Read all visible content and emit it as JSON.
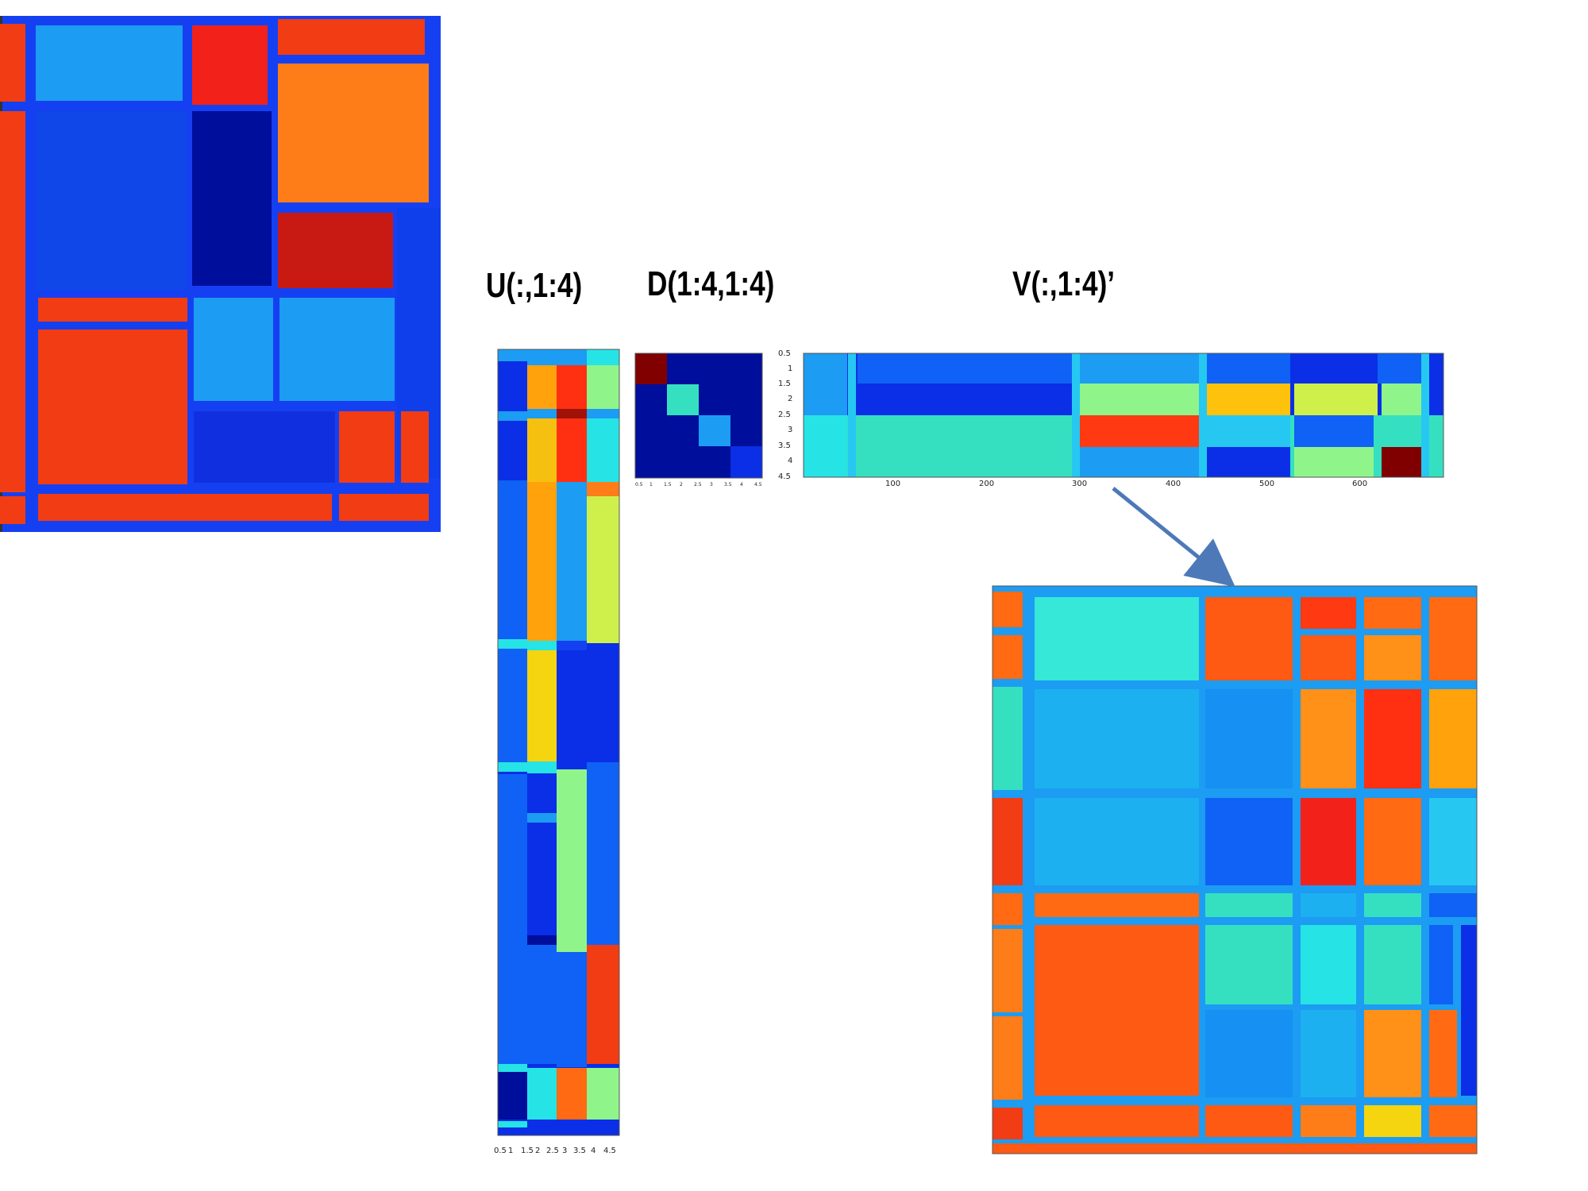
{
  "labels": {
    "u": "U(:,1:4)",
    "d": "D(1:4,1:4)",
    "v": "V(:,1:4)’"
  },
  "palette": {
    "dark_blue": "#000e9c",
    "blue": "#0a2fe6",
    "mid_blue": "#0f62f5",
    "light_blue": "#1c9cf2",
    "cyan": "#26e3e6",
    "teal": "#35e0c0",
    "light_green": "#8ff58a",
    "yellow_green": "#cff04a",
    "yellow": "#f5d410",
    "orange": "#ffa20c",
    "orange_red": "#ff6a12",
    "red": "#f23c14",
    "dark_red": "#a01208",
    "maroon": "#800000",
    "border_blue": "#1540f2"
  },
  "v_axis": {
    "x_ticks": [
      "100",
      "200",
      "300",
      "400",
      "500",
      "600"
    ],
    "y_ticks": [
      "0.5",
      "1",
      "1.5",
      "2",
      "2.5",
      "3",
      "3.5",
      "4",
      "4.5"
    ]
  },
  "d_axis": {
    "x_ticks": [
      "0.5",
      "1",
      "1.5",
      "2",
      "2.5",
      "3",
      "3.5",
      "4",
      "4.5"
    ],
    "y_ticks": [
      "0.5",
      "1",
      "1.5",
      "2",
      "2.5",
      "3",
      "3.5",
      "4",
      "4.5"
    ]
  },
  "u_axis": {
    "x_ticks": [
      "0.5",
      "1",
      "1.5",
      "2",
      "2.5",
      "3",
      "3.5",
      "4",
      "4.5"
    ]
  }
}
